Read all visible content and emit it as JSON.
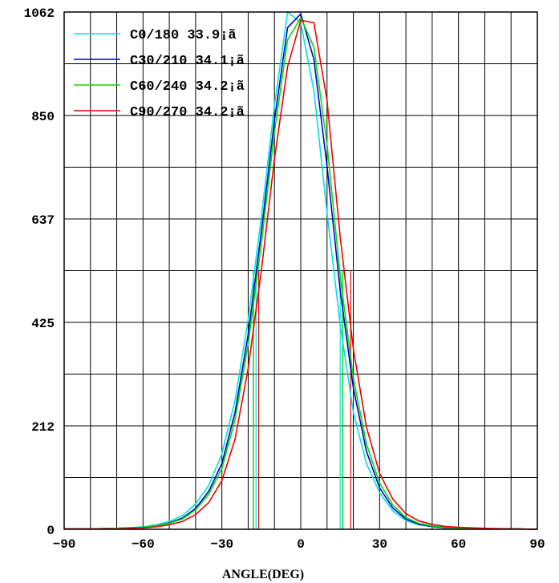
{
  "chart_data": {
    "type": "line",
    "xlabel": "ANGLE(DEG)",
    "ylabel": "",
    "xlim": [
      -90,
      90
    ],
    "ylim": [
      0,
      1062
    ],
    "x_ticks": [
      -90,
      -60,
      -30,
      0,
      30,
      60,
      90
    ],
    "y_ticks": [
      0,
      212,
      425,
      637,
      850,
      1062
    ],
    "grid": true,
    "legend_position": "top-left",
    "series": [
      {
        "name": "C0/180 33.9¡ã",
        "color": "#00e0e0",
        "x": [
          -90,
          -80,
          -70,
          -60,
          -55,
          -50,
          -45,
          -40,
          -35,
          -30,
          -25,
          -20,
          -15,
          -10,
          -5,
          0,
          5,
          10,
          15,
          20,
          25,
          30,
          35,
          40,
          45,
          50,
          55,
          60,
          70,
          80,
          90
        ],
        "y": [
          1,
          1,
          2,
          5,
          9,
          16,
          28,
          52,
          90,
          155,
          265,
          430,
          640,
          870,
          1062,
          1040,
          900,
          650,
          420,
          240,
          135,
          75,
          38,
          18,
          9,
          5,
          3,
          2,
          1,
          1,
          0
        ],
        "half_angle_lines": [
          -17,
          15
        ]
      },
      {
        "name": "C30/210 34.1¡ã",
        "color": "#0000cc",
        "x": [
          -90,
          -80,
          -70,
          -60,
          -55,
          -50,
          -45,
          -40,
          -35,
          -30,
          -25,
          -20,
          -15,
          -10,
          -5,
          0,
          5,
          10,
          15,
          20,
          25,
          30,
          35,
          40,
          45,
          50,
          55,
          60,
          70,
          80,
          90
        ],
        "y": [
          1,
          1,
          2,
          4,
          7,
          13,
          23,
          43,
          78,
          135,
          240,
          400,
          610,
          840,
          1030,
          1058,
          965,
          745,
          490,
          290,
          160,
          85,
          44,
          21,
          10,
          6,
          3,
          2,
          1,
          1,
          0
        ],
        "half_angle_lines": [
          -18,
          16
        ]
      },
      {
        "name": "C60/240 34.2¡ã",
        "color": "#00dd00",
        "x": [
          -90,
          -80,
          -70,
          -60,
          -55,
          -50,
          -45,
          -40,
          -35,
          -30,
          -25,
          -20,
          -15,
          -10,
          -5,
          0,
          5,
          10,
          15,
          20,
          25,
          30,
          35,
          40,
          45,
          50,
          55,
          60,
          70,
          80,
          90
        ],
        "y": [
          1,
          1,
          2,
          4,
          7,
          12,
          21,
          40,
          72,
          125,
          225,
          380,
          585,
          815,
          1005,
          1050,
          990,
          790,
          520,
          310,
          175,
          95,
          50,
          24,
          12,
          7,
          4,
          2,
          1,
          1,
          0
        ],
        "half_angle_lines": [
          -18,
          16
        ]
      },
      {
        "name": "C90/270 34.2¡ã",
        "color": "#ee0000",
        "x": [
          -90,
          -80,
          -70,
          -60,
          -55,
          -50,
          -45,
          -40,
          -35,
          -30,
          -25,
          -20,
          -15,
          -10,
          -5,
          0,
          5,
          10,
          15,
          20,
          25,
          30,
          35,
          40,
          45,
          50,
          55,
          60,
          70,
          80,
          90
        ],
        "y": [
          1,
          1,
          1,
          3,
          5,
          9,
          16,
          30,
          55,
          100,
          185,
          330,
          530,
          760,
          950,
          1045,
          1040,
          880,
          600,
          370,
          210,
          115,
          62,
          32,
          17,
          10,
          6,
          4,
          2,
          1,
          0
        ],
        "half_angle_lines": [
          -16,
          19
        ]
      }
    ]
  }
}
